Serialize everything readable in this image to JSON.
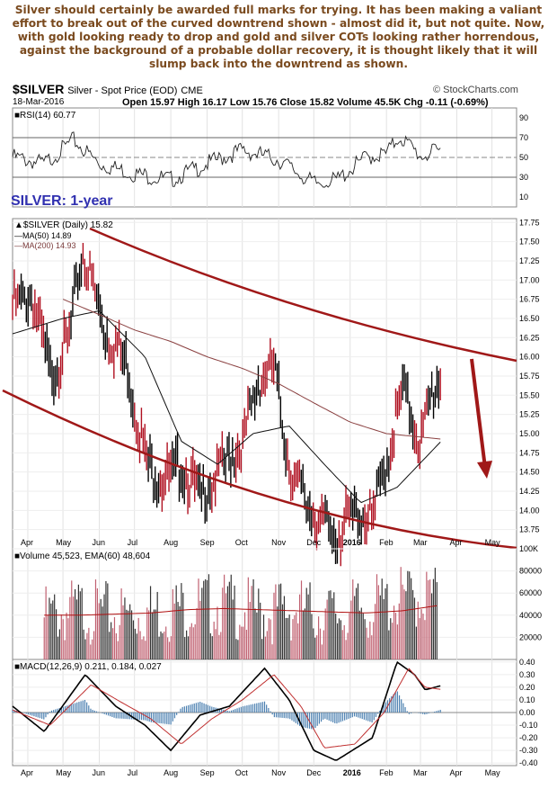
{
  "commentary": "Silver should certainly be awarded full marks for trying. It has been making a valiant effort to break out of the curved downtrend shown - almost did it, but not quite. Now, with gold looking ready to drop and gold and silver COTs looking rather horrendous, against the background of a probable dollar recovery, it is thought likely that it will slump back into the downtrend as shown.",
  "header": {
    "symbol": "$SILVER",
    "name": "Silver - Spot Price (EOD)",
    "exchange": "CME",
    "date": "18-Mar-2016",
    "quote": "Open 15.97  High 16.17  Low 15.76  Close 15.82  Volume 45.5K  Chg -0.11 (-0.69%)",
    "brand": "© StockCharts.com",
    "overlay_label": "SILVER: 1-year"
  },
  "chart_data": [
    {
      "type": "line",
      "panel": "rsi",
      "legend": "RSI(14) 60.77",
      "ylim": [
        0,
        100
      ],
      "ticks": [
        10,
        30,
        50,
        70,
        90
      ],
      "reference_lines": [
        30,
        50,
        70
      ],
      "x": [
        "2015-03-19",
        "2015-04-15",
        "2015-05-10",
        "2015-06-01",
        "2015-07-01",
        "2015-08-01",
        "2015-09-01",
        "2015-10-01",
        "2015-11-01",
        "2015-12-01",
        "2015-12-20",
        "2016-01-15",
        "2016-02-01",
        "2016-02-12",
        "2016-03-01",
        "2016-03-18"
      ],
      "values": [
        55,
        48,
        72,
        48,
        38,
        32,
        48,
        62,
        52,
        28,
        31,
        55,
        58,
        76,
        56,
        61
      ]
    },
    {
      "type": "ohlc",
      "panel": "price",
      "legend": [
        "$SILVER (Daily) 15.82",
        "MA(50) 14.89",
        "MA(200) 14.93"
      ],
      "ylim": [
        13.5,
        17.8
      ],
      "ticks": [
        13.75,
        14.0,
        14.25,
        14.5,
        14.75,
        15.0,
        15.25,
        15.5,
        15.75,
        16.0,
        16.25,
        16.5,
        16.75,
        17.0,
        17.25,
        17.5,
        17.75
      ],
      "x_ticks": [
        "Apr",
        "May",
        "Jun",
        "Jul",
        "Aug",
        "Sep",
        "Oct",
        "Nov",
        "Dec",
        "2016",
        "Feb",
        "Mar",
        "Apr",
        "May"
      ],
      "series": [
        {
          "name": "$SILVER (Daily)",
          "x": [
            "2015-03-19",
            "2015-04-05",
            "2015-04-20",
            "2015-05-05",
            "2015-05-18",
            "2015-06-05",
            "2015-06-25",
            "2015-07-10",
            "2015-07-25",
            "2015-08-10",
            "2015-08-26",
            "2015-09-15",
            "2015-10-01",
            "2015-10-15",
            "2015-10-28",
            "2015-11-10",
            "2015-11-25",
            "2015-12-10",
            "2015-12-20",
            "2016-01-05",
            "2016-01-20",
            "2016-02-05",
            "2016-02-15",
            "2016-03-01",
            "2016-03-10",
            "2016-03-18"
          ],
          "values": [
            16.8,
            16.9,
            15.9,
            16.3,
            17.5,
            16.5,
            16.0,
            14.8,
            14.5,
            14.7,
            14.3,
            14.7,
            15.0,
            15.8,
            16.0,
            14.7,
            14.2,
            13.9,
            13.8,
            14.1,
            14.0,
            15.0,
            15.7,
            15.0,
            15.6,
            15.82
          ]
        },
        {
          "name": "MA(50)",
          "x": [
            "2015-03-19",
            "2015-05-01",
            "2015-06-01",
            "2015-07-10",
            "2015-08-10",
            "2015-09-10",
            "2015-10-10",
            "2015-11-10",
            "2015-12-10",
            "2016-01-10",
            "2016-02-10",
            "2016-03-18"
          ],
          "values": [
            16.3,
            16.5,
            16.6,
            16.0,
            14.9,
            14.6,
            15.0,
            15.1,
            14.6,
            14.1,
            14.3,
            14.89
          ]
        },
        {
          "name": "MA(200)",
          "x": [
            "2015-05-01",
            "2015-06-01",
            "2015-07-01",
            "2015-08-01",
            "2015-09-01",
            "2015-10-01",
            "2015-11-01",
            "2015-12-01",
            "2016-01-01",
            "2016-02-01",
            "2016-03-18"
          ],
          "values": [
            16.75,
            16.55,
            16.35,
            16.2,
            16.0,
            15.85,
            15.65,
            15.4,
            15.15,
            15.0,
            14.93
          ]
        }
      ]
    },
    {
      "type": "bar",
      "panel": "volume",
      "legend": "Volume 45,523, EMA(60) 48,604",
      "ylim": [
        0,
        100000
      ],
      "ticks": [
        20000,
        40000,
        60000,
        80000,
        "100K"
      ],
      "x": [
        "2015-04",
        "2015-05",
        "2015-06",
        "2015-07",
        "2015-08",
        "2015-09",
        "2015-10",
        "2015-11",
        "2015-12",
        "2016-01",
        "2016-02",
        "2016-03"
      ],
      "values": [
        38000,
        45000,
        40000,
        42000,
        48000,
        50000,
        42000,
        45000,
        40000,
        45000,
        55000,
        58000
      ],
      "ema": [
        40000,
        40000,
        41000,
        42000,
        45000,
        46000,
        45000,
        44000,
        43000,
        42000,
        44000,
        48604
      ]
    },
    {
      "type": "line",
      "panel": "macd",
      "legend": "MACD(12,26,9) 0.211, 0.184, 0.027",
      "ylim": [
        -0.42,
        0.42
      ],
      "ticks": [
        -0.4,
        -0.3,
        -0.2,
        -0.1,
        0.0,
        0.1,
        0.2,
        0.3,
        0.4
      ],
      "x_ticks": [
        "Apr",
        "May",
        "Jun",
        "Jul",
        "Aug",
        "Sep",
        "Oct",
        "Nov",
        "Dec",
        "2016",
        "Feb",
        "Mar",
        "Apr",
        "May"
      ],
      "series": [
        {
          "name": "MACD",
          "x": [
            "2015-03-19",
            "2015-04-15",
            "2015-05-20",
            "2015-06-15",
            "2015-07-10",
            "2015-08-01",
            "2015-08-26",
            "2015-09-20",
            "2015-10-20",
            "2015-11-10",
            "2015-12-01",
            "2015-12-20",
            "2016-01-20",
            "2016-02-10",
            "2016-02-25",
            "2016-03-05",
            "2016-03-18"
          ],
          "values": [
            0.05,
            -0.15,
            0.3,
            0.05,
            -0.1,
            -0.3,
            -0.02,
            0.05,
            0.35,
            0.1,
            -0.3,
            -0.38,
            -0.2,
            0.4,
            0.3,
            0.18,
            0.211
          ]
        },
        {
          "name": "Signal",
          "x": [
            "2015-03-19",
            "2015-04-20",
            "2015-05-25",
            "2015-06-20",
            "2015-07-15",
            "2015-08-10",
            "2015-09-05",
            "2015-10-01",
            "2015-10-28",
            "2015-11-20",
            "2015-12-10",
            "2016-01-05",
            "2016-01-30",
            "2016-02-20",
            "2016-03-05",
            "2016-03-18"
          ],
          "values": [
            0.02,
            -0.1,
            0.22,
            0.08,
            -0.05,
            -0.25,
            -0.05,
            0.1,
            0.3,
            0.05,
            -0.28,
            -0.25,
            0.0,
            0.35,
            0.2,
            0.184
          ]
        }
      ]
    }
  ]
}
